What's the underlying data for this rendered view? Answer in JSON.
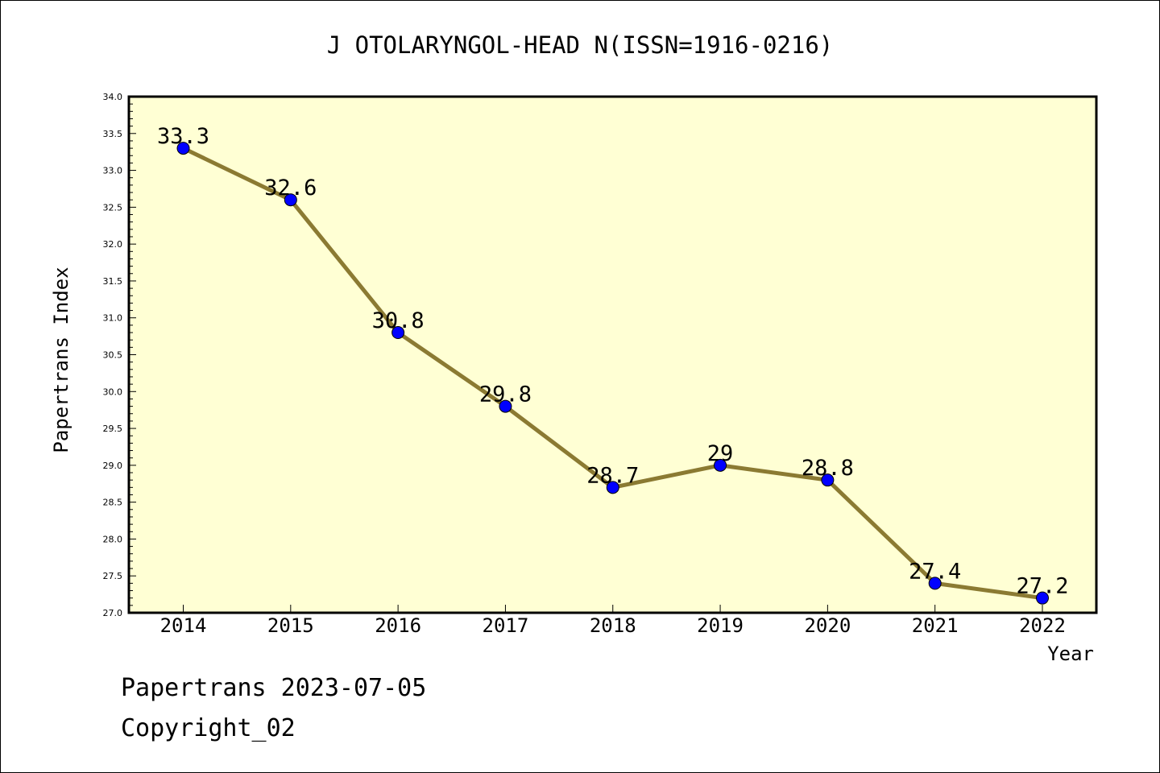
{
  "chart_data": {
    "type": "line",
    "title": "J OTOLARYNGOL-HEAD N(ISSN=1916-0216)",
    "xlabel": "Year",
    "ylabel": "Papertrans Index",
    "categories": [
      "2014",
      "2015",
      "2016",
      "2017",
      "2018",
      "2019",
      "2020",
      "2021",
      "2022"
    ],
    "values": [
      33.3,
      32.6,
      30.8,
      29.8,
      28.7,
      29.0,
      28.8,
      27.4,
      27.2
    ],
    "data_labels": [
      "33.3",
      "32.6",
      "30.8",
      "29.8",
      "28.7",
      "29",
      "28.8",
      "27.4",
      "27.2"
    ],
    "ylim": [
      27.0,
      34.0
    ],
    "yticks": [
      "27.0",
      "27.5",
      "28.0",
      "28.5",
      "29.0",
      "29.5",
      "30.0",
      "30.5",
      "31.0",
      "31.5",
      "32.0",
      "32.5",
      "33.0",
      "33.5",
      "34.0"
    ],
    "grid": false,
    "colors": {
      "plot_background": "#ffffd4",
      "line": "#8b7a32",
      "marker": "#0000ff"
    }
  },
  "footer": {
    "line1": "Papertrans 2023-07-05",
    "line2": "Copyright_02"
  }
}
